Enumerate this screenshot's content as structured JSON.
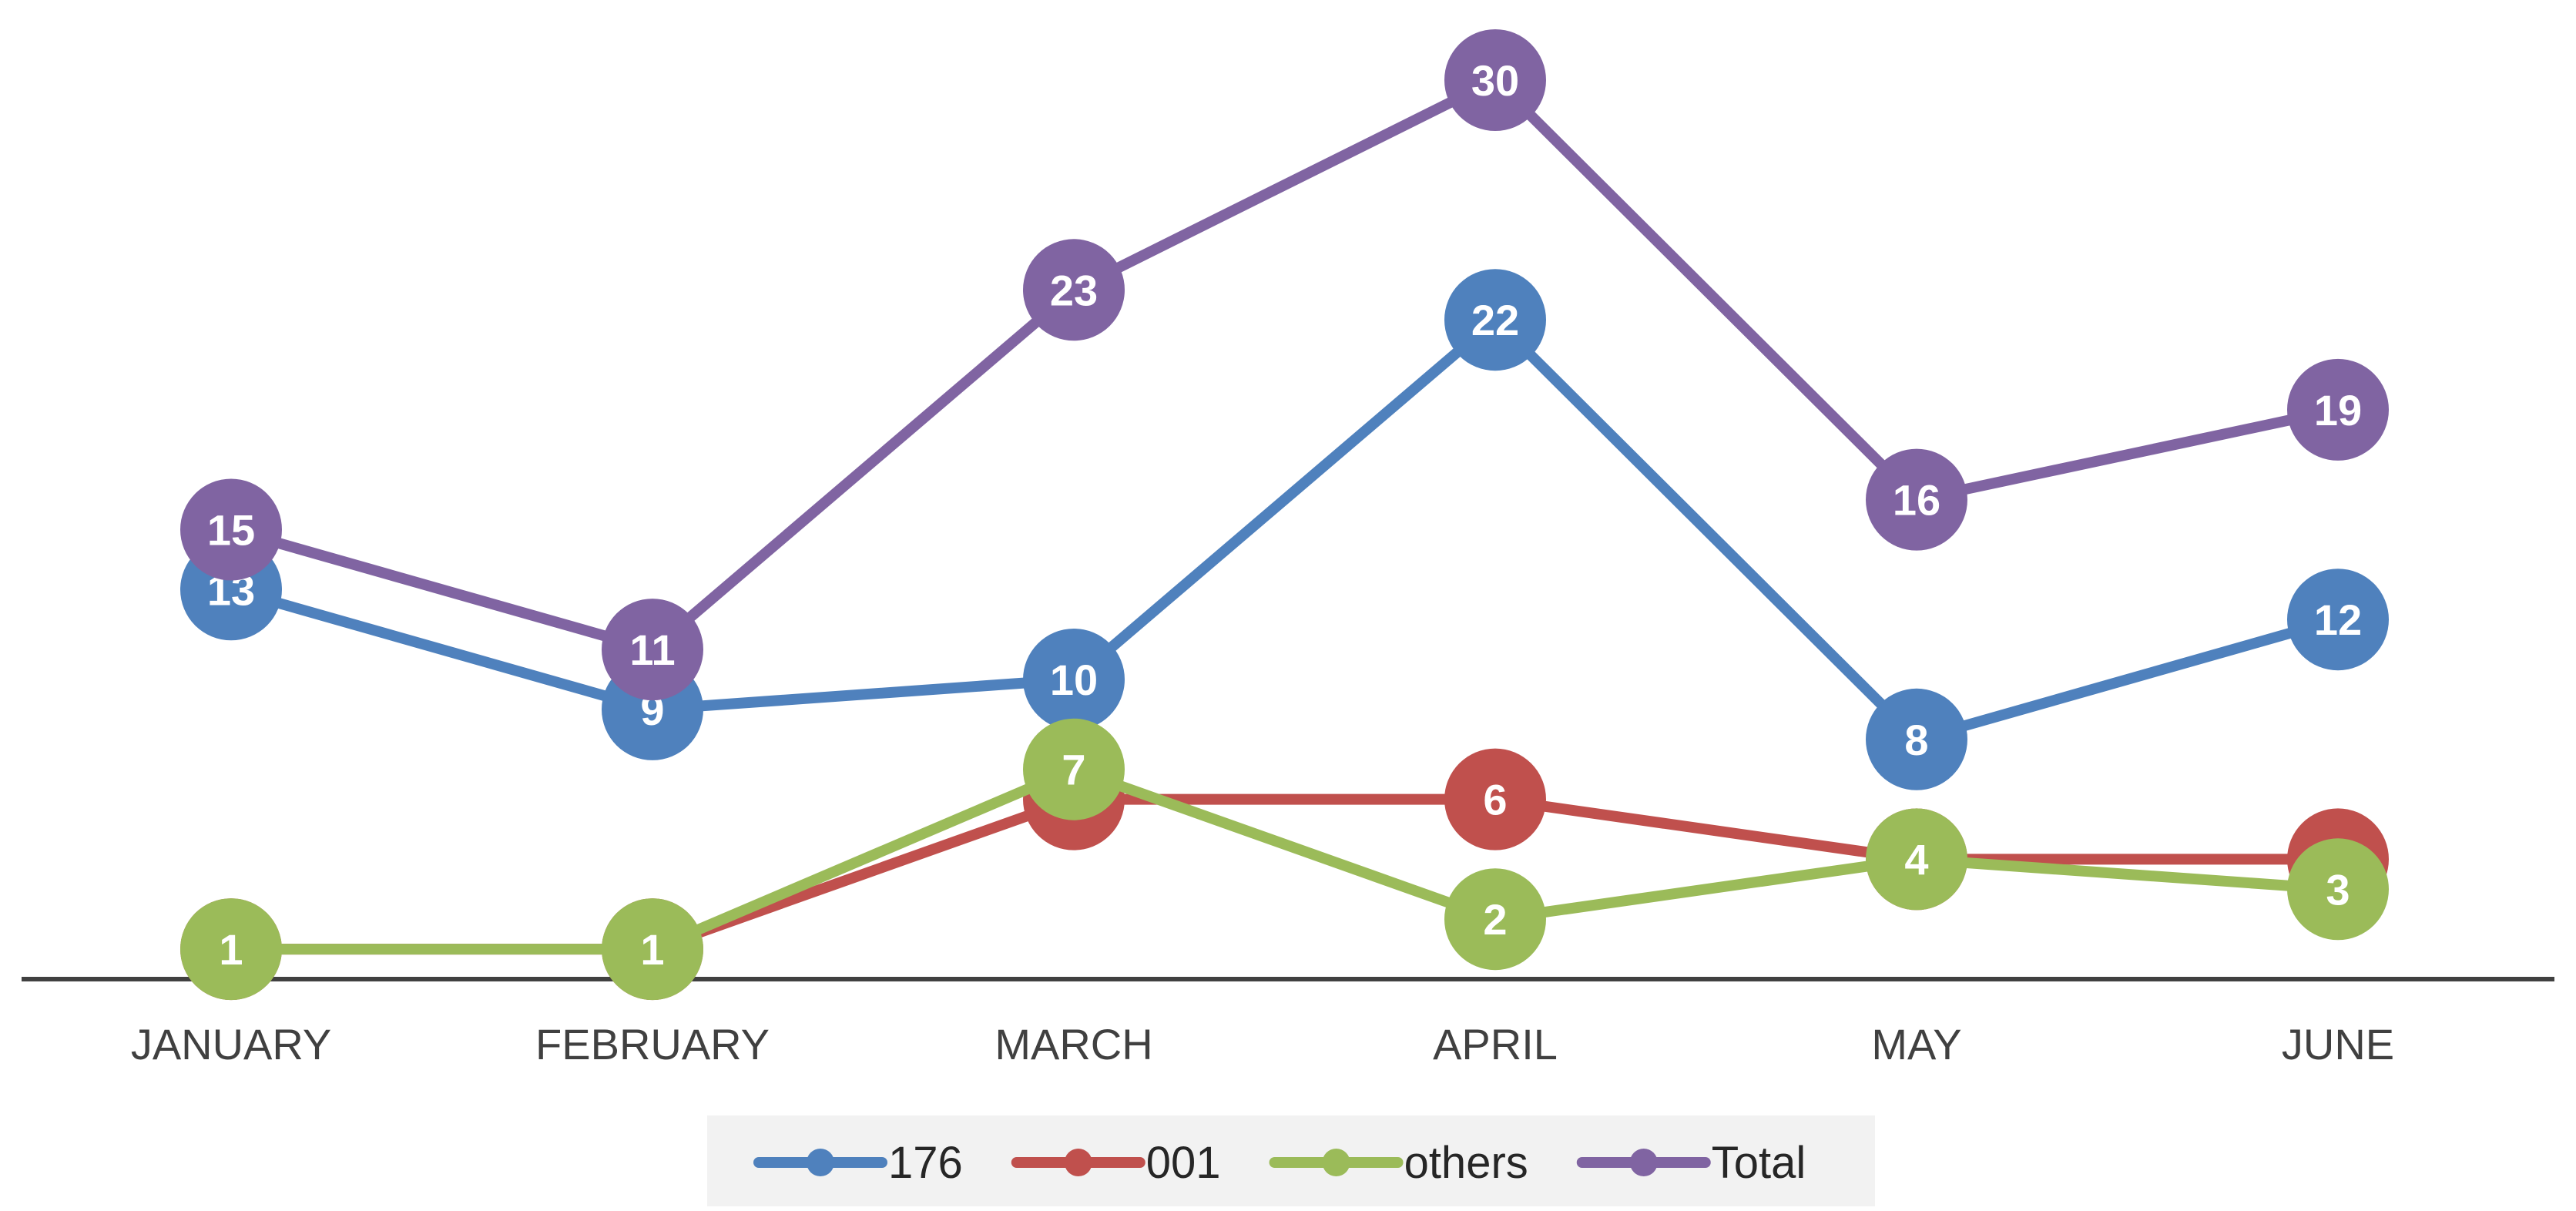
{
  "chart_data": {
    "type": "line",
    "categories": [
      "JANUARY",
      "FEBRUARY",
      "MARCH",
      "APRIL",
      "MAY",
      "JUNE"
    ],
    "series": [
      {
        "name": "176",
        "color": "#4F81BD",
        "values": [
          13,
          9,
          10,
          22,
          8,
          12
        ]
      },
      {
        "name": "001",
        "color": "#C0504D",
        "values": [
          1,
          1,
          6,
          6,
          4,
          4
        ]
      },
      {
        "name": "others",
        "color": "#9BBB59",
        "values": [
          1,
          1,
          7,
          2,
          4,
          3
        ]
      },
      {
        "name": "Total",
        "color": "#8064A2",
        "values": [
          15,
          11,
          23,
          30,
          16,
          19
        ]
      }
    ],
    "title": "",
    "xlabel": "",
    "ylabel": "",
    "ylim": [
      0,
      31
    ],
    "grid": false,
    "data_labels": true,
    "legend": "bottom-center",
    "legend_background": "#F2F2F2",
    "axis_color": "#404040",
    "label_text_color": "#FFFFFF",
    "category_text_color": "#404040"
  }
}
